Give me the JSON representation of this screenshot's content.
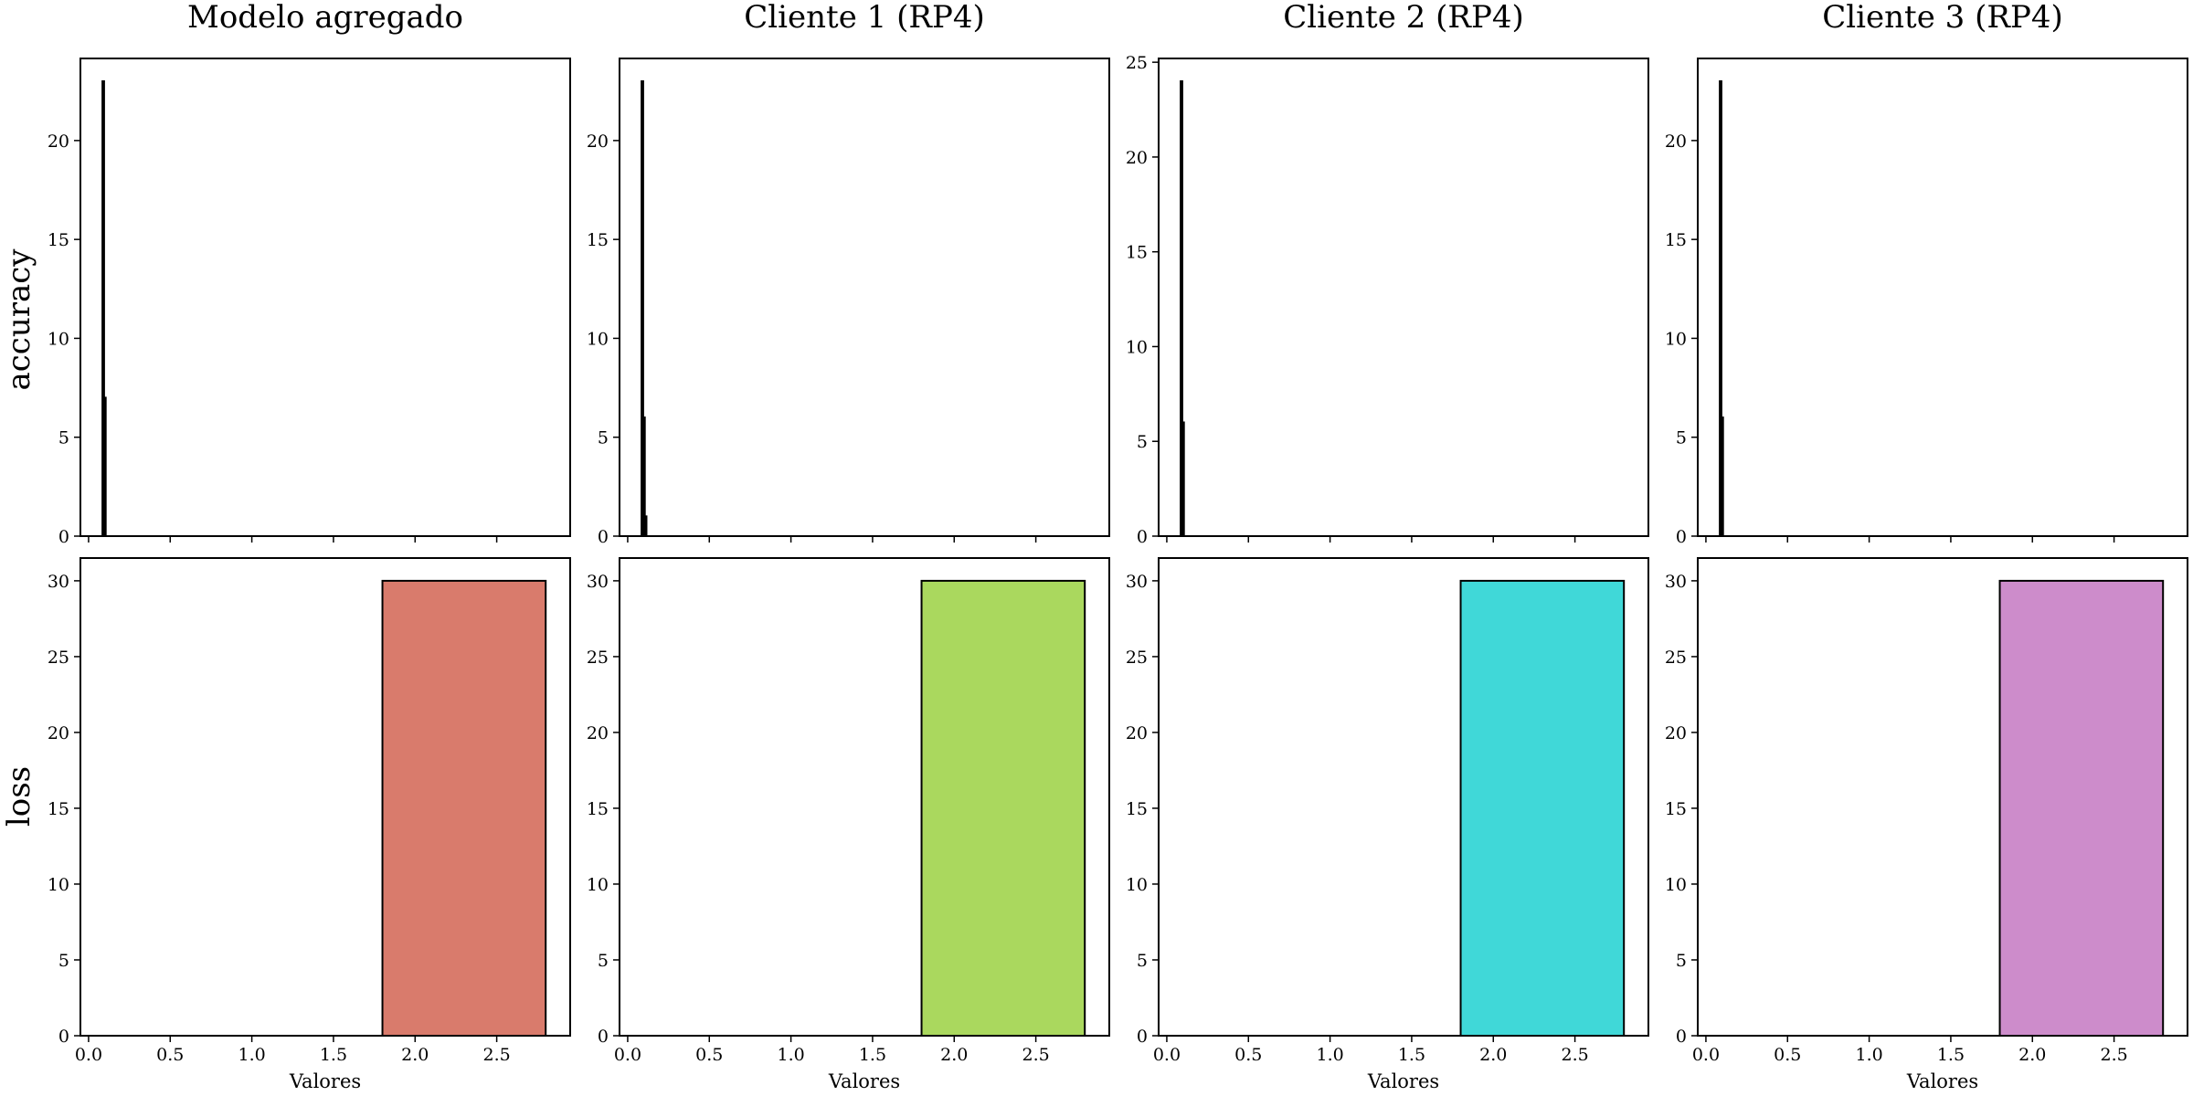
{
  "rows": [
    "accuracy",
    "loss"
  ],
  "x_axis_label": "Valores",
  "chart_data": [
    {
      "type": "bar",
      "title": "Modelo agregado",
      "ylabel": "accuracy",
      "xlabel": "",
      "xlim": [
        -0.05,
        2.95
      ],
      "ylim": [
        0,
        24.15
      ],
      "xticks": [
        0.0,
        0.5,
        1.0,
        1.5,
        2.0,
        2.5
      ],
      "yticks": [
        0,
        5,
        10,
        15,
        20
      ],
      "show_x_tick_labels": false,
      "color": "#000000",
      "bins": [
        {
          "x0": 0.085,
          "x1": 0.095,
          "value": 23
        },
        {
          "x0": 0.095,
          "x1": 0.105,
          "value": 7
        }
      ]
    },
    {
      "type": "bar",
      "title": "Cliente 1 (RP4)",
      "ylabel": "",
      "xlabel": "",
      "xlim": [
        -0.05,
        2.95
      ],
      "ylim": [
        0,
        24.15
      ],
      "xticks": [
        0.0,
        0.5,
        1.0,
        1.5,
        2.0,
        2.5
      ],
      "yticks": [
        0,
        5,
        10,
        15,
        20
      ],
      "show_x_tick_labels": false,
      "color": "#000000",
      "bins": [
        {
          "x0": 0.085,
          "x1": 0.095,
          "value": 23
        },
        {
          "x0": 0.095,
          "x1": 0.105,
          "value": 6
        },
        {
          "x0": 0.105,
          "x1": 0.115,
          "value": 1
        }
      ]
    },
    {
      "type": "bar",
      "title": "Cliente 2 (RP4)",
      "ylabel": "",
      "xlabel": "",
      "xlim": [
        -0.05,
        2.95
      ],
      "ylim": [
        0,
        25.2
      ],
      "xticks": [
        0.0,
        0.5,
        1.0,
        1.5,
        2.0,
        2.5
      ],
      "yticks": [
        0,
        5,
        10,
        15,
        20,
        25
      ],
      "show_x_tick_labels": false,
      "color": "#000000",
      "bins": [
        {
          "x0": 0.085,
          "x1": 0.095,
          "value": 24
        },
        {
          "x0": 0.095,
          "x1": 0.105,
          "value": 6
        }
      ]
    },
    {
      "type": "bar",
      "title": "Cliente 3 (RP4)",
      "ylabel": "",
      "xlabel": "",
      "xlim": [
        -0.05,
        2.95
      ],
      "ylim": [
        0,
        24.15
      ],
      "xticks": [
        0.0,
        0.5,
        1.0,
        1.5,
        2.0,
        2.5
      ],
      "yticks": [
        0,
        5,
        10,
        15,
        20
      ],
      "show_x_tick_labels": false,
      "color": "#000000",
      "bins": [
        {
          "x0": 0.085,
          "x1": 0.095,
          "value": 23
        },
        {
          "x0": 0.095,
          "x1": 0.105,
          "value": 6
        }
      ]
    },
    {
      "type": "bar",
      "title": "",
      "ylabel": "loss",
      "xlabel": "Valores",
      "xlim": [
        -0.05,
        2.95
      ],
      "ylim": [
        0,
        31.5
      ],
      "xticks": [
        0.0,
        0.5,
        1.0,
        1.5,
        2.0,
        2.5
      ],
      "xtick_labels": [
        "0.0",
        "0.5",
        "1.0",
        "1.5",
        "2.0",
        "2.5"
      ],
      "yticks": [
        0,
        5,
        10,
        15,
        20,
        25,
        30
      ],
      "show_x_tick_labels": true,
      "color": "#d97b6c",
      "bins": [
        {
          "x0": 1.8,
          "x1": 2.8,
          "value": 30
        }
      ]
    },
    {
      "type": "bar",
      "title": "",
      "ylabel": "",
      "xlabel": "Valores",
      "xlim": [
        -0.05,
        2.95
      ],
      "ylim": [
        0,
        31.5
      ],
      "xticks": [
        0.0,
        0.5,
        1.0,
        1.5,
        2.0,
        2.5
      ],
      "xtick_labels": [
        "0.0",
        "0.5",
        "1.0",
        "1.5",
        "2.0",
        "2.5"
      ],
      "yticks": [
        0,
        5,
        10,
        15,
        20,
        25,
        30
      ],
      "show_x_tick_labels": true,
      "color": "#aad85e",
      "bins": [
        {
          "x0": 1.8,
          "x1": 2.8,
          "value": 30
        }
      ]
    },
    {
      "type": "bar",
      "title": "",
      "ylabel": "",
      "xlabel": "Valores",
      "xlim": [
        -0.05,
        2.95
      ],
      "ylim": [
        0,
        31.5
      ],
      "xticks": [
        0.0,
        0.5,
        1.0,
        1.5,
        2.0,
        2.5
      ],
      "xtick_labels": [
        "0.0",
        "0.5",
        "1.0",
        "1.5",
        "2.0",
        "2.5"
      ],
      "yticks": [
        0,
        5,
        10,
        15,
        20,
        25,
        30
      ],
      "show_x_tick_labels": true,
      "color": "#40d8d8",
      "bins": [
        {
          "x0": 1.8,
          "x1": 2.8,
          "value": 30
        }
      ]
    },
    {
      "type": "bar",
      "title": "",
      "ylabel": "",
      "xlabel": "Valores",
      "xlim": [
        -0.05,
        2.95
      ],
      "ylim": [
        0,
        31.5
      ],
      "xticks": [
        0.0,
        0.5,
        1.0,
        1.5,
        2.0,
        2.5
      ],
      "xtick_labels": [
        "0.0",
        "0.5",
        "1.0",
        "1.5",
        "2.0",
        "2.5"
      ],
      "yticks": [
        0,
        5,
        10,
        15,
        20,
        25,
        30
      ],
      "show_x_tick_labels": true,
      "color": "#cd8ccb",
      "bins": [
        {
          "x0": 1.8,
          "x1": 2.8,
          "value": 30
        }
      ]
    }
  ]
}
